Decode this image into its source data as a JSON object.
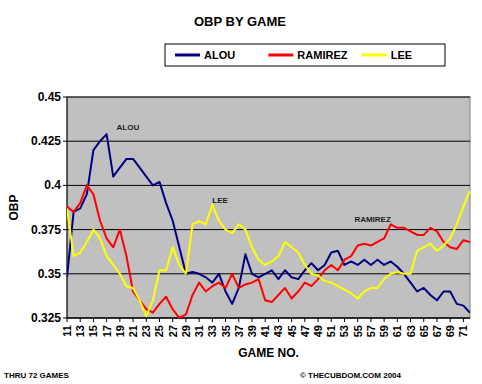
{
  "chart_data": {
    "type": "line",
    "title": "OBP BY GAME",
    "x_label": "GAME NO.",
    "y_label": "OBP",
    "x": [
      11,
      12,
      13,
      14,
      15,
      16,
      17,
      18,
      19,
      20,
      21,
      22,
      23,
      24,
      25,
      26,
      27,
      28,
      29,
      30,
      31,
      32,
      33,
      34,
      35,
      36,
      37,
      38,
      39,
      40,
      41,
      42,
      43,
      44,
      45,
      46,
      47,
      48,
      49,
      50,
      51,
      52,
      53,
      54,
      55,
      56,
      57,
      58,
      59,
      60,
      61,
      62,
      63,
      64,
      65,
      66,
      67,
      68,
      69,
      70,
      71,
      72
    ],
    "series": [
      {
        "name": "ALOU",
        "color": "#000080",
        "values": [
          0.348,
          0.385,
          0.387,
          0.395,
          0.42,
          0.425,
          0.429,
          0.405,
          0.41,
          0.415,
          0.415,
          0.41,
          0.405,
          0.4,
          0.402,
          0.39,
          0.38,
          0.365,
          0.35,
          0.351,
          0.35,
          0.348,
          0.345,
          0.35,
          0.34,
          0.333,
          0.342,
          0.361,
          0.35,
          0.348,
          0.35,
          0.352,
          0.347,
          0.352,
          0.348,
          0.347,
          0.352,
          0.356,
          0.352,
          0.355,
          0.362,
          0.363,
          0.355,
          0.357,
          0.355,
          0.358,
          0.355,
          0.358,
          0.355,
          0.357,
          0.354,
          0.35,
          0.345,
          0.34,
          0.342,
          0.338,
          0.335,
          0.34,
          0.34,
          0.333,
          0.332,
          0.328
        ]
      },
      {
        "name": "RAMIREZ",
        "color": "#ff0000",
        "values": [
          0.388,
          0.385,
          0.39,
          0.4,
          0.395,
          0.38,
          0.37,
          0.365,
          0.375,
          0.36,
          0.34,
          0.335,
          0.33,
          0.328,
          0.333,
          0.337,
          0.33,
          0.325,
          0.327,
          0.338,
          0.345,
          0.34,
          0.343,
          0.345,
          0.342,
          0.35,
          0.342,
          0.344,
          0.345,
          0.347,
          0.335,
          0.334,
          0.338,
          0.342,
          0.336,
          0.34,
          0.345,
          0.343,
          0.347,
          0.352,
          0.355,
          0.352,
          0.358,
          0.36,
          0.366,
          0.367,
          0.366,
          0.368,
          0.37,
          0.378,
          0.376,
          0.376,
          0.374,
          0.372,
          0.372,
          0.376,
          0.374,
          0.368,
          0.365,
          0.364,
          0.369,
          0.368
        ]
      },
      {
        "name": "LEE",
        "color": "#ffff00",
        "values": [
          0.387,
          0.36,
          0.362,
          0.368,
          0.375,
          0.37,
          0.36,
          0.355,
          0.35,
          0.343,
          0.342,
          0.335,
          0.326,
          0.335,
          0.352,
          0.352,
          0.365,
          0.355,
          0.35,
          0.378,
          0.38,
          0.378,
          0.389,
          0.38,
          0.375,
          0.373,
          0.378,
          0.375,
          0.365,
          0.358,
          0.355,
          0.357,
          0.36,
          0.368,
          0.365,
          0.362,
          0.355,
          0.35,
          0.349,
          0.346,
          0.345,
          0.343,
          0.341,
          0.339,
          0.336,
          0.34,
          0.342,
          0.342,
          0.347,
          0.35,
          0.351,
          0.35,
          0.35,
          0.363,
          0.365,
          0.367,
          0.363,
          0.366,
          0.37,
          0.378,
          0.388,
          0.397
        ]
      }
    ],
    "xlim": [
      11,
      72
    ],
    "xticks": [
      11,
      13,
      15,
      17,
      19,
      21,
      23,
      25,
      27,
      29,
      31,
      33,
      35,
      37,
      39,
      41,
      43,
      45,
      47,
      49,
      51,
      53,
      55,
      57,
      59,
      61,
      63,
      65,
      67,
      69,
      71
    ],
    "ylim": [
      0.325,
      0.45
    ],
    "yticks": [
      0.325,
      0.35,
      0.375,
      0.4,
      0.425,
      0.45
    ],
    "grid": true,
    "legend": "top",
    "annotations": [
      {
        "text": "ALOU",
        "x": 18.5,
        "y": 0.433
      },
      {
        "text": "LEE",
        "x": 33,
        "y": 0.392
      },
      {
        "text": "RAMIREZ",
        "x": 54.5,
        "y": 0.381
      }
    ],
    "note": "THRU 72 GAMES",
    "source": "© THECUBDOM.COM 2004"
  }
}
